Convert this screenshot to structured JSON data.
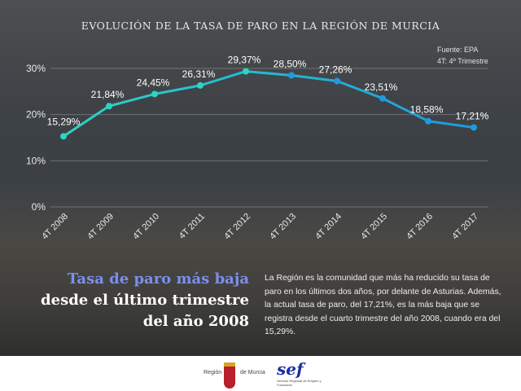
{
  "chart_data": {
    "type": "line",
    "title": "EVOLUCIÓN DE LA TASA DE PARO EN LA REGIÓN DE MURCIA",
    "categories": [
      "4T 2008",
      "4T 2009",
      "4T 2010",
      "4T 2011",
      "4T 2012",
      "4T 2013",
      "4T 2014",
      "4T 2015",
      "4T 2016",
      "4T 2017"
    ],
    "values": [
      15.29,
      21.84,
      24.45,
      26.31,
      29.37,
      28.5,
      27.26,
      23.51,
      18.58,
      17.21
    ],
    "data_labels": [
      "15,29%",
      "21,84%",
      "24,45%",
      "26,31%",
      "29,37%",
      "28,50%",
      "27,26%",
      "23,51%",
      "18,58%",
      "17,21%"
    ],
    "yticks": [
      "0%",
      "10%",
      "20%",
      "30%"
    ],
    "ylim": [
      0,
      30
    ],
    "grid": true,
    "line_colors": [
      "#2ed3c3",
      "#1e9be0"
    ]
  },
  "source": [
    "Fuente: EPA",
    "4T: 4º Trimestre"
  ],
  "headline": [
    "Tasa de paro más baja",
    "desde el último trimestre",
    "del año 2008"
  ],
  "paragraph": "La Región es la comunidad que más ha reducido su tasa de paro en los últimos dos años, por delante de Asturias. Además, la actual tasa de paro, del 17,21%, es la más baja que se registra desde el cuarto trimestre del año 2008, cuando era del 15,29%.",
  "footer": {
    "logo1_left": "Región",
    "logo1_right": "de Murcia",
    "logo2": "sef",
    "logo2_sub": "Servicio Regional de Empleo y Formación"
  }
}
